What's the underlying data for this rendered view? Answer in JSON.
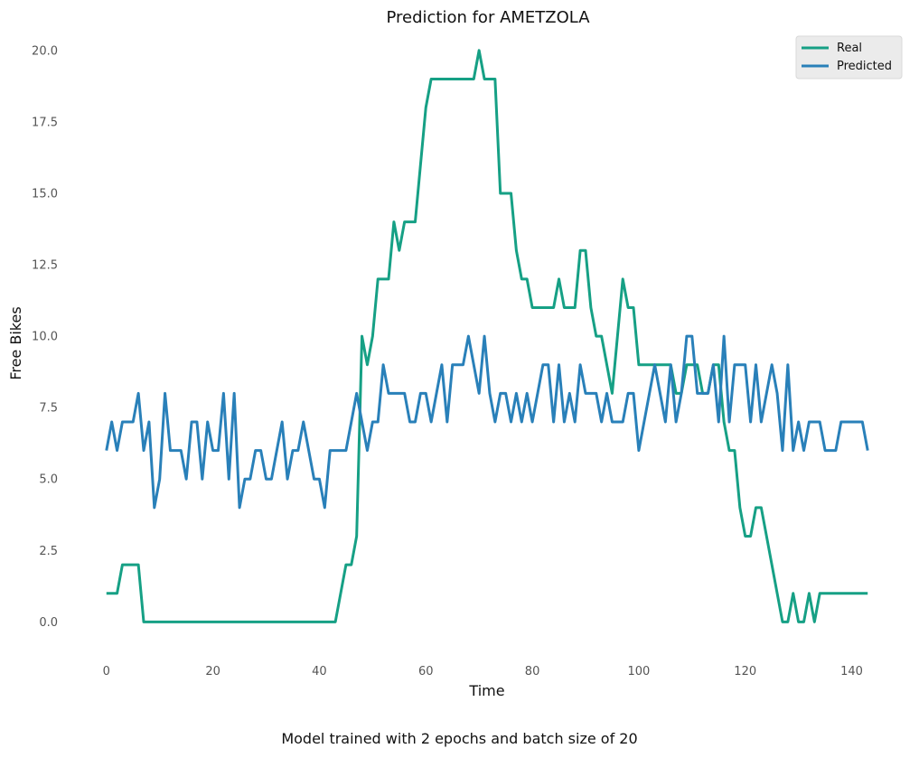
{
  "chart_data": {
    "type": "line",
    "title": "Prediction for AMETZOLA",
    "xlabel": "Time",
    "ylabel": "Free Bikes",
    "xlim": [
      -2,
      145
    ],
    "ylim": [
      -1,
      20.5
    ],
    "xticks": [
      0,
      20,
      40,
      60,
      80,
      100,
      120,
      140
    ],
    "xtick_labels": [
      "0",
      "20",
      "40",
      "60",
      "80",
      "100",
      "120",
      "140"
    ],
    "yticks": [
      0,
      2.5,
      5,
      7.5,
      10,
      12.5,
      15,
      17.5,
      20
    ],
    "ytick_labels": [
      "0.0",
      "2.5",
      "5.0",
      "7.5",
      "10.0",
      "12.5",
      "15.0",
      "17.5",
      "20.0"
    ],
    "grid": false,
    "legend": "top-right",
    "series": [
      {
        "name": "Real",
        "color": "#16a085",
        "x_start": 0,
        "values": [
          1,
          1,
          1,
          2,
          2,
          2,
          2,
          0,
          0,
          0,
          0,
          0,
          0,
          0,
          0,
          0,
          0,
          0,
          0,
          0,
          0,
          0,
          0,
          0,
          0,
          0,
          0,
          0,
          0,
          0,
          0,
          0,
          0,
          0,
          0,
          0,
          0,
          0,
          0,
          0,
          0,
          0,
          0,
          0,
          1,
          2,
          2,
          3,
          10,
          9,
          10,
          12,
          12,
          12,
          14,
          13,
          14,
          14,
          14,
          16,
          18,
          19,
          19,
          19,
          19,
          19,
          19,
          19,
          19,
          19,
          20,
          19,
          19,
          19,
          15,
          15,
          15,
          13,
          12,
          12,
          11,
          11,
          11,
          11,
          11,
          12,
          11,
          11,
          11,
          13,
          13,
          11,
          10,
          10,
          9,
          8,
          10,
          12,
          11,
          11,
          9,
          9,
          9,
          9,
          9,
          9,
          9,
          8,
          8,
          9,
          9,
          9,
          8,
          8,
          9,
          9,
          7,
          6,
          6,
          4,
          3,
          3,
          4,
          4,
          3,
          2,
          1,
          0,
          0,
          1,
          0,
          0,
          1,
          0,
          1,
          1,
          1,
          1,
          1,
          1,
          1,
          1,
          1,
          1
        ]
      },
      {
        "name": "Predicted",
        "color": "#2980b9",
        "x_start": 0,
        "values": [
          6,
          7,
          6,
          7,
          7,
          7,
          8,
          6,
          7,
          4,
          5,
          8,
          6,
          6,
          6,
          5,
          7,
          7,
          5,
          7,
          6,
          6,
          8,
          5,
          8,
          4,
          5,
          5,
          6,
          6,
          5,
          5,
          6,
          7,
          5,
          6,
          6,
          7,
          6,
          5,
          5,
          4,
          6,
          6,
          6,
          6,
          7,
          8,
          7,
          6,
          7,
          7,
          9,
          8,
          8,
          8,
          8,
          7,
          7,
          8,
          8,
          7,
          8,
          9,
          7,
          9,
          9,
          9,
          10,
          9,
          8,
          10,
          8,
          7,
          8,
          8,
          7,
          8,
          7,
          8,
          7,
          8,
          9,
          9,
          7,
          9,
          7,
          8,
          7,
          9,
          8,
          8,
          8,
          7,
          8,
          7,
          7,
          7,
          8,
          8,
          6,
          7,
          8,
          9,
          8,
          7,
          9,
          7,
          8,
          10,
          10,
          8,
          8,
          8,
          9,
          7,
          10,
          7,
          9,
          9,
          9,
          7,
          9,
          7,
          8,
          9,
          8,
          6,
          9,
          6,
          7,
          6,
          7,
          7,
          7,
          6,
          6,
          6,
          7,
          7,
          7,
          7,
          7,
          6
        ]
      }
    ]
  },
  "footer": {
    "caption": "Model trained with 2 epochs and batch size of 20"
  }
}
